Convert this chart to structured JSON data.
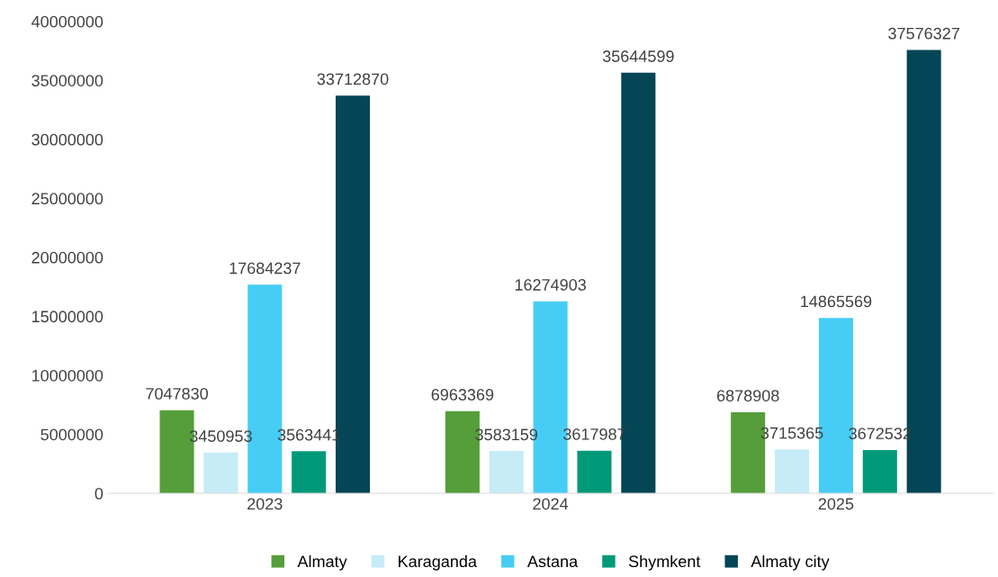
{
  "chart_data": {
    "type": "bar",
    "categories": [
      "2023",
      "2024",
      "2025"
    ],
    "series": [
      {
        "name": "Almaty",
        "color": "#559e3a",
        "values": [
          7047830,
          6963369,
          6878908
        ]
      },
      {
        "name": "Karaganda",
        "color": "#c5ecf7",
        "values": [
          3450953,
          3583159,
          3715365
        ]
      },
      {
        "name": "Astana",
        "color": "#47cdf5",
        "values": [
          17684237,
          16274903,
          14865569
        ]
      },
      {
        "name": "Shymkent",
        "color": "#009a78",
        "values": [
          3563441,
          3617987,
          3672532
        ]
      },
      {
        "name": "Almaty city",
        "color": "#044556",
        "values": [
          33712870,
          35644599,
          37576327
        ]
      }
    ],
    "ylim": [
      0,
      40000000
    ],
    "yticks": [
      0,
      5000000,
      10000000,
      15000000,
      20000000,
      25000000,
      30000000,
      35000000,
      40000000
    ],
    "grid": false,
    "legend": "bottom",
    "data_labels": true
  }
}
